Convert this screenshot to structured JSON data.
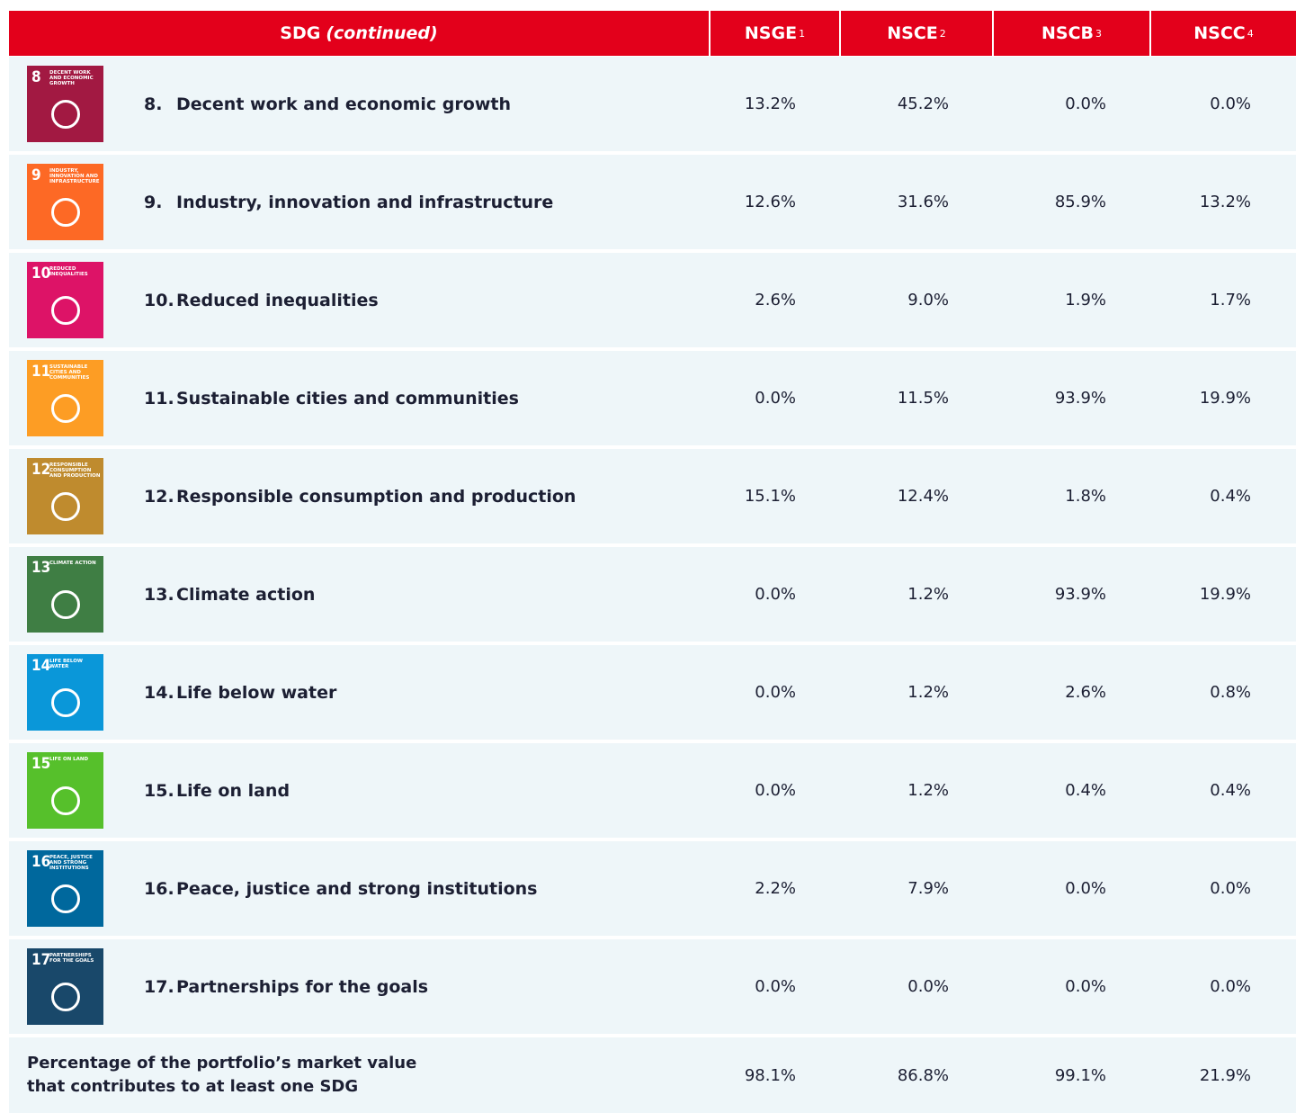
{
  "header": {
    "sdg": "SDG",
    "sdg_note": "(continued)",
    "columns": [
      {
        "name": "NSGE",
        "note": "1"
      },
      {
        "name": "NSCE",
        "note": "2"
      },
      {
        "name": "NSCB",
        "note": "3"
      },
      {
        "name": "NSCC",
        "note": "4"
      }
    ]
  },
  "rows": [
    {
      "icon": {
        "number": "8",
        "label": "Decent work and economic growth",
        "color": "#a21942"
      },
      "number": "8.",
      "label": "Decent work and economic growth",
      "values": [
        "13.2%",
        "45.2%",
        "0.0%",
        "0.0%"
      ]
    },
    {
      "icon": {
        "number": "9",
        "label": "Industry, innovation and infrastructure",
        "color": "#fd6925"
      },
      "number": "9.",
      "label": "Industry, innovation and infrastructure",
      "values": [
        "12.6%",
        "31.6%",
        "85.9%",
        "13.2%"
      ]
    },
    {
      "icon": {
        "number": "10",
        "label": "Reduced inequalities",
        "color": "#dd1367"
      },
      "number": "10.",
      "label": "Reduced inequalities",
      "values": [
        "2.6%",
        "9.0%",
        "1.9%",
        "1.7%"
      ]
    },
    {
      "icon": {
        "number": "11",
        "label": "Sustainable cities and communities",
        "color": "#fd9d24"
      },
      "number": "11.",
      "label": "Sustainable cities and communities",
      "values": [
        "0.0%",
        "11.5%",
        "93.9%",
        "19.9%"
      ]
    },
    {
      "icon": {
        "number": "12",
        "label": "Responsible consumption and production",
        "color": "#bf8b2e"
      },
      "number": "12.",
      "label": "Responsible consumption and production",
      "values": [
        "15.1%",
        "12.4%",
        "1.8%",
        "0.4%"
      ]
    },
    {
      "icon": {
        "number": "13",
        "label": "Climate action",
        "color": "#3f7e44"
      },
      "number": "13.",
      "label": "Climate action",
      "values": [
        "0.0%",
        "1.2%",
        "93.9%",
        "19.9%"
      ]
    },
    {
      "icon": {
        "number": "14",
        "label": "Life below water",
        "color": "#0a97d9"
      },
      "number": "14.",
      "label": "Life below water",
      "values": [
        "0.0%",
        "1.2%",
        "2.6%",
        "0.8%"
      ]
    },
    {
      "icon": {
        "number": "15",
        "label": "Life on land",
        "color": "#56c02b"
      },
      "number": "15.",
      "label": "Life on land",
      "values": [
        "0.0%",
        "1.2%",
        "0.4%",
        "0.4%"
      ]
    },
    {
      "icon": {
        "number": "16",
        "label": "Peace, justice and strong institutions",
        "color": "#00689d"
      },
      "number": "16.",
      "label": "Peace, justice and strong institutions",
      "values": [
        "2.2%",
        "7.9%",
        "0.0%",
        "0.0%"
      ]
    },
    {
      "icon": {
        "number": "17",
        "label": "Partnerships for the goals",
        "color": "#19486a"
      },
      "number": "17.",
      "label": "Partnerships for the goals",
      "values": [
        "0.0%",
        "0.0%",
        "0.0%",
        "0.0%"
      ]
    }
  ],
  "total": {
    "label": [
      "Percentage of the portfolio’s market value",
      "that contributes to at least one SDG"
    ],
    "values": [
      "98.1%",
      "86.8%",
      "99.1%",
      "21.9%"
    ]
  }
}
